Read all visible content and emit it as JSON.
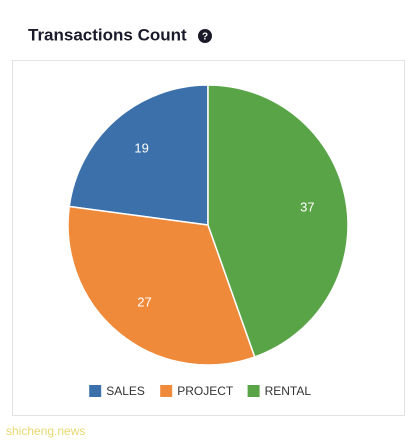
{
  "chart_data": {
    "type": "pie",
    "title": "Transactions Count",
    "categories": [
      "SALES",
      "PROJECT",
      "RENTAL"
    ],
    "values": [
      19,
      27,
      37
    ],
    "colors": [
      "#3b70ab",
      "#ef8a3a",
      "#58a446"
    ]
  },
  "watermark": "shicheng.news"
}
